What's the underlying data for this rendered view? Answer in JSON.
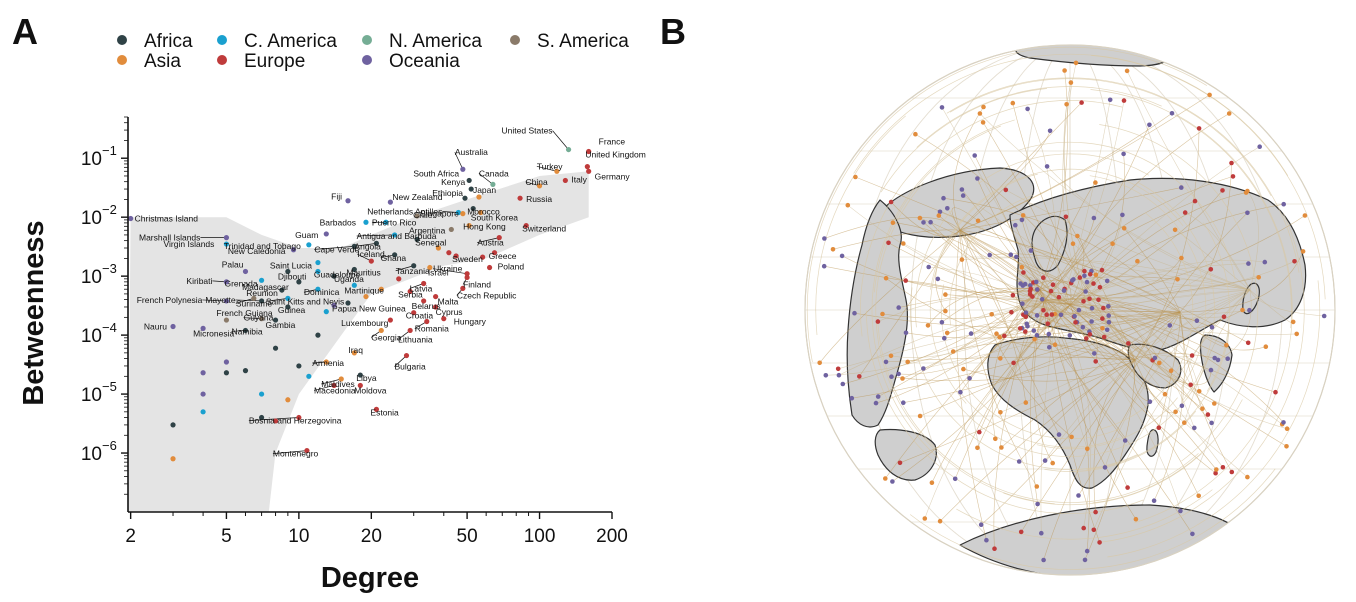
{
  "panels": {
    "a": "A",
    "b": "B"
  },
  "colors": {
    "Africa": "#2f4246",
    "Asia": "#e18c3c",
    "C. America": "#1aa0cf",
    "Europe": "#bf3b3b",
    "N. America": "#75ad95",
    "Oceania": "#6f62a0",
    "S. America": "#8a7a69"
  },
  "chart_data": [
    {
      "type": "scatter",
      "xlabel": "Degree",
      "ylabel": "Betweenness",
      "xscale": "log",
      "yscale": "log",
      "xlim": [
        1.95,
        200
      ],
      "ylim": [
        1e-07,
        0.5
      ],
      "xticks": [
        2,
        5,
        10,
        20,
        50,
        100,
        200
      ],
      "xtick_labels": [
        "2",
        "5",
        "10",
        "20",
        "50",
        "100",
        "200"
      ],
      "yticks": [
        1e-06,
        1e-05,
        0.0001,
        0.001,
        0.01,
        0.1
      ],
      "ytick_bases": [
        "10",
        "10",
        "10",
        "10",
        "10",
        "10"
      ],
      "ytick_exps": [
        "−6",
        "−5",
        "−4",
        "−3",
        "−2",
        "−1"
      ],
      "grid": false,
      "legend": {
        "position": "top",
        "items": [
          "Africa",
          "Asia",
          "C. America",
          "Europe",
          "N. America",
          "Oceania",
          "S. America"
        ]
      },
      "band_upper": [
        [
          2,
          0.01
        ],
        [
          5,
          0.01
        ],
        [
          7,
          0.005
        ],
        [
          10,
          0.003
        ],
        [
          15,
          0.003
        ],
        [
          20,
          0.005
        ],
        [
          30,
          0.01
        ],
        [
          50,
          0.02
        ],
        [
          100,
          0.05
        ],
        [
          160,
          0.06
        ]
      ],
      "band_lower": [
        [
          160,
          0.01
        ],
        [
          100,
          0.005
        ],
        [
          60,
          0.002
        ],
        [
          40,
          0.0015
        ],
        [
          20,
          0.0005
        ],
        [
          15,
          0.0001
        ],
        [
          10,
          1e-05
        ],
        [
          8,
          1e-06
        ],
        [
          7.5,
          1e-07
        ],
        [
          1.95,
          1e-07
        ]
      ],
      "labeled_points": [
        {
          "name": "United States",
          "x": 132,
          "y": 0.14,
          "region": "N. America"
        },
        {
          "name": "France",
          "x": 160,
          "y": 0.13,
          "region": "Europe"
        },
        {
          "name": "United Kingdom",
          "x": 158,
          "y": 0.072,
          "region": "Europe"
        },
        {
          "name": "Germany",
          "x": 160,
          "y": 0.06,
          "region": "Europe"
        },
        {
          "name": "Turkey",
          "x": 118,
          "y": 0.06,
          "region": "Asia"
        },
        {
          "name": "China",
          "x": 100,
          "y": 0.034,
          "region": "Asia"
        },
        {
          "name": "Italy",
          "x": 128,
          "y": 0.042,
          "region": "Europe"
        },
        {
          "name": "Russia",
          "x": 83,
          "y": 0.021,
          "region": "Europe"
        },
        {
          "name": "Switzerland",
          "x": 88,
          "y": 0.0072,
          "region": "Europe"
        },
        {
          "name": "Australia",
          "x": 48,
          "y": 0.065,
          "region": "Oceania"
        },
        {
          "name": "Canada",
          "x": 64,
          "y": 0.036,
          "region": "N. America"
        },
        {
          "name": "South Africa",
          "x": 51,
          "y": 0.042,
          "region": "Africa"
        },
        {
          "name": "Kenya",
          "x": 52,
          "y": 0.03,
          "region": "Africa"
        },
        {
          "name": "Japan",
          "x": 56,
          "y": 0.022,
          "region": "Asia"
        },
        {
          "name": "Ethiopia",
          "x": 49,
          "y": 0.021,
          "region": "Africa"
        },
        {
          "name": "Morocco",
          "x": 53,
          "y": 0.014,
          "region": "Africa"
        },
        {
          "name": "South Korea",
          "x": 57,
          "y": 0.012,
          "region": "Asia"
        },
        {
          "name": "Netherlands Antilles",
          "x": 46,
          "y": 0.012,
          "region": "C. America"
        },
        {
          "name": "Singapore",
          "x": 48,
          "y": 0.0115,
          "region": "Asia"
        },
        {
          "name": "Hong Kong",
          "x": 51,
          "y": 0.0072,
          "region": "Asia"
        },
        {
          "name": "Argentina",
          "x": 43,
          "y": 0.0062,
          "region": "S. America"
        },
        {
          "name": "Austria",
          "x": 68,
          "y": 0.0045,
          "region": "Europe"
        },
        {
          "name": "Fiji",
          "x": 16,
          "y": 0.019,
          "region": "Oceania"
        },
        {
          "name": "New Zealand",
          "x": 24,
          "y": 0.018,
          "region": "Oceania"
        },
        {
          "name": "Barbados",
          "x": 19,
          "y": 0.0082,
          "region": "C. America"
        },
        {
          "name": "Puerto Rico",
          "x": 23,
          "y": 0.0082,
          "region": "C. America"
        },
        {
          "name": "Chile",
          "x": 31,
          "y": 0.0105,
          "region": "S. America"
        },
        {
          "name": "Guam",
          "x": 13,
          "y": 0.0052,
          "region": "Oceania"
        },
        {
          "name": "Antigua and Barbuda",
          "x": 25,
          "y": 0.005,
          "region": "C. America"
        },
        {
          "name": "Senegal",
          "x": 31,
          "y": 0.0042,
          "region": "Africa"
        },
        {
          "name": "Cape Verde",
          "x": 17,
          "y": 0.0032,
          "region": "Africa"
        },
        {
          "name": "Angola",
          "x": 21,
          "y": 0.0036,
          "region": "Africa"
        },
        {
          "name": "Ghana",
          "x": 25,
          "y": 0.0023,
          "region": "Africa"
        },
        {
          "name": "Sweden",
          "x": 45,
          "y": 0.0022,
          "region": "Europe"
        },
        {
          "name": "Greece",
          "x": 58,
          "y": 0.0021,
          "region": "Europe"
        },
        {
          "name": "Iceland",
          "x": 20,
          "y": 0.0018,
          "region": "Europe"
        },
        {
          "name": "Tanzania",
          "x": 30,
          "y": 0.0015,
          "region": "Africa"
        },
        {
          "name": "Israel",
          "x": 35,
          "y": 0.0014,
          "region": "Asia"
        },
        {
          "name": "Poland",
          "x": 62,
          "y": 0.0014,
          "region": "Europe"
        },
        {
          "name": "Ukraine",
          "x": 50,
          "y": 0.0011,
          "region": "Europe"
        },
        {
          "name": "Mauritius",
          "x": 17,
          "y": 0.0013,
          "region": "Africa"
        },
        {
          "name": "Finland",
          "x": 50,
          "y": 0.00095,
          "region": "Europe"
        },
        {
          "name": "Latvia",
          "x": 33,
          "y": 0.00075,
          "region": "Europe"
        },
        {
          "name": "Czech Republic",
          "x": 48,
          "y": 0.00062,
          "region": "Europe"
        },
        {
          "name": "Serbia",
          "x": 29,
          "y": 0.00055,
          "region": "Europe"
        },
        {
          "name": "Malta",
          "x": 37,
          "y": 0.00045,
          "region": "Europe"
        },
        {
          "name": "Belarus",
          "x": 33,
          "y": 0.00038,
          "region": "Europe"
        },
        {
          "name": "Cyprus",
          "x": 37,
          "y": 0.0003,
          "region": "Europe"
        },
        {
          "name": "Croatia",
          "x": 30,
          "y": 0.00024,
          "region": "Europe"
        },
        {
          "name": "Hungary",
          "x": 40,
          "y": 0.00019,
          "region": "Europe"
        },
        {
          "name": "Romania",
          "x": 34,
          "y": 0.00017,
          "region": "Europe"
        },
        {
          "name": "Lithuania",
          "x": 29,
          "y": 0.00012,
          "region": "Europe"
        },
        {
          "name": "Luxembourg",
          "x": 24,
          "y": 0.00018,
          "region": "Europe"
        },
        {
          "name": "Georgia",
          "x": 22,
          "y": 0.00012,
          "region": "Asia"
        },
        {
          "name": "Uganda",
          "x": 14,
          "y": 0.001,
          "region": "Africa"
        },
        {
          "name": "Guadeloupe",
          "x": 12,
          "y": 0.0012,
          "region": "C. America"
        },
        {
          "name": "Saint Lucia",
          "x": 12,
          "y": 0.0017,
          "region": "C. America"
        },
        {
          "name": "Djibouti",
          "x": 9,
          "y": 0.0012,
          "region": "Africa"
        },
        {
          "name": "Madagascar",
          "x": 10,
          "y": 0.0008,
          "region": "Africa"
        },
        {
          "name": "Martinique",
          "x": 17,
          "y": 0.0007,
          "region": "C. America"
        },
        {
          "name": "Dominica",
          "x": 12,
          "y": 0.0006,
          "region": "C. America"
        },
        {
          "name": "Reunion",
          "x": 8.5,
          "y": 0.00058,
          "region": "Africa"
        },
        {
          "name": "Saint Kitts and Nevis",
          "x": 9,
          "y": 0.00042,
          "region": "C. America"
        },
        {
          "name": "Papua New Guinea",
          "x": 14,
          "y": 0.00032,
          "region": "Oceania"
        },
        {
          "name": "Guinea",
          "x": 9,
          "y": 0.0003,
          "region": "Africa"
        },
        {
          "name": "Gambia",
          "x": 8,
          "y": 0.00018,
          "region": "Africa"
        },
        {
          "name": "Guyana",
          "x": 7,
          "y": 0.00019,
          "region": "S. America"
        },
        {
          "name": "Namibia",
          "x": 6,
          "y": 0.00012,
          "region": "Africa"
        },
        {
          "name": "Suriname",
          "x": 6.5,
          "y": 0.00042,
          "region": "S. America"
        },
        {
          "name": "New Caledonia",
          "x": 9.5,
          "y": 0.0028,
          "region": "Oceania"
        },
        {
          "name": "Trinidad and Tobago",
          "x": 11,
          "y": 0.0034,
          "region": "C. America"
        },
        {
          "name": "Marshall Islands",
          "x": 5,
          "y": 0.0045,
          "region": "Oceania"
        },
        {
          "name": "Virgin Islands",
          "x": 5,
          "y": 0.0035,
          "region": "C. America"
        },
        {
          "name": "Christmas Island",
          "x": 2,
          "y": 0.0095,
          "region": "Oceania"
        },
        {
          "name": "Palau",
          "x": 6,
          "y": 0.0012,
          "region": "Oceania"
        },
        {
          "name": "Kiribati",
          "x": 5,
          "y": 0.0008,
          "region": "Oceania"
        },
        {
          "name": "Grenada",
          "x": 7,
          "y": 0.00085,
          "region": "C. America"
        },
        {
          "name": "Mayotte",
          "x": 7,
          "y": 0.00038,
          "region": "Africa"
        },
        {
          "name": "French Polynesia",
          "x": 5,
          "y": 0.00038,
          "region": "Oceania"
        },
        {
          "name": "French Guiana",
          "x": 5,
          "y": 0.00018,
          "region": "S. America"
        },
        {
          "name": "Nauru",
          "x": 3,
          "y": 0.00014,
          "region": "Oceania"
        },
        {
          "name": "Micronesia",
          "x": 4,
          "y": 0.00013,
          "region": "Oceania"
        },
        {
          "name": "Armenia",
          "x": 13,
          "y": 3.5e-05,
          "region": "Asia"
        },
        {
          "name": "Iraq",
          "x": 17,
          "y": 5e-05,
          "region": "Asia"
        },
        {
          "name": "Maldives",
          "x": 15,
          "y": 1.8e-05,
          "region": "Asia"
        },
        {
          "name": "Libya",
          "x": 18,
          "y": 2.1e-05,
          "region": "Africa"
        },
        {
          "name": "Macedonia",
          "x": 14,
          "y": 1.4e-05,
          "region": "Europe"
        },
        {
          "name": "Moldova",
          "x": 18,
          "y": 1.4e-05,
          "region": "Europe"
        },
        {
          "name": "Estonia",
          "x": 21,
          "y": 5.5e-06,
          "region": "Europe"
        },
        {
          "name": "Bulgaria",
          "x": 28,
          "y": 4.5e-05,
          "region": "Europe"
        },
        {
          "name": "Bosnia and Herzegovina",
          "x": 10,
          "y": 4e-06,
          "region": "Europe"
        },
        {
          "name": "Montenegro",
          "x": 10.8,
          "y": 1.1e-06,
          "region": "Europe"
        }
      ],
      "unlabeled_points": [
        {
          "x": 3,
          "y": 3e-06,
          "region": "Africa"
        },
        {
          "x": 3,
          "y": 8e-07,
          "region": "Asia"
        },
        {
          "x": 4,
          "y": 5e-06,
          "region": "C. America"
        },
        {
          "x": 4,
          "y": 1e-05,
          "region": "Oceania"
        },
        {
          "x": 4,
          "y": 2.3e-05,
          "region": "Oceania"
        },
        {
          "x": 5,
          "y": 2.3e-05,
          "region": "Africa"
        },
        {
          "x": 5,
          "y": 3.5e-05,
          "region": "Oceania"
        },
        {
          "x": 6,
          "y": 2.5e-05,
          "region": "Africa"
        },
        {
          "x": 7,
          "y": 1e-05,
          "region": "C. America"
        },
        {
          "x": 7,
          "y": 4e-06,
          "region": "Africa"
        },
        {
          "x": 8,
          "y": 6e-05,
          "region": "Africa"
        },
        {
          "x": 8,
          "y": 3.5e-06,
          "region": "Europe"
        },
        {
          "x": 9,
          "y": 8e-06,
          "region": "Asia"
        },
        {
          "x": 10,
          "y": 3e-05,
          "region": "Africa"
        },
        {
          "x": 11,
          "y": 2e-05,
          "region": "C. America"
        },
        {
          "x": 12,
          "y": 0.0001,
          "region": "Africa"
        },
        {
          "x": 13,
          "y": 0.00025,
          "region": "C. America"
        },
        {
          "x": 16,
          "y": 0.00035,
          "region": "Africa"
        },
        {
          "x": 19,
          "y": 0.00045,
          "region": "Asia"
        },
        {
          "x": 22,
          "y": 0.0006,
          "region": "Asia"
        },
        {
          "x": 26,
          "y": 0.0009,
          "region": "Europe"
        },
        {
          "x": 38,
          "y": 0.003,
          "region": "Asia"
        },
        {
          "x": 42,
          "y": 0.0025,
          "region": "Europe"
        },
        {
          "x": 65,
          "y": 0.0025,
          "region": "Europe"
        }
      ]
    }
  ],
  "map": {
    "panel": "B",
    "description_visible": false
  }
}
